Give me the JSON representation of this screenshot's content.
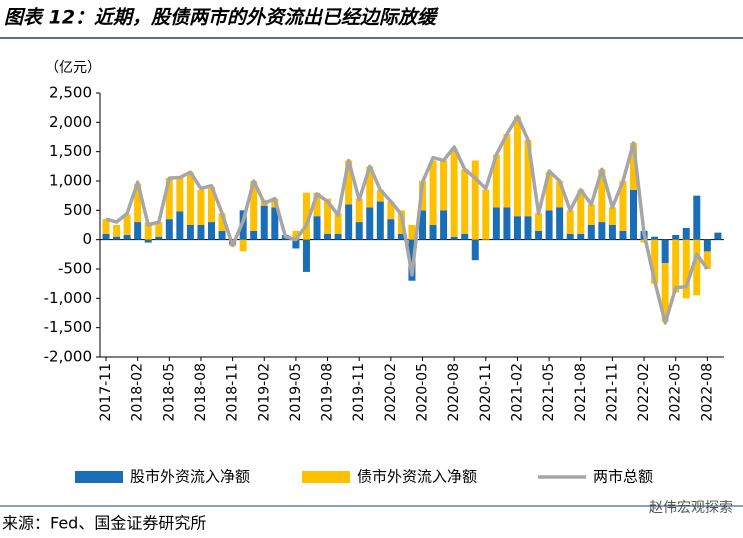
{
  "chart_data": {
    "type": "bar",
    "stacked": true,
    "title": "图表 12：近期，股债两市的外资流出已经边际放缓",
    "y_label": "（亿元）",
    "source": "来源：Fed、国金证券研究所",
    "watermark": "赵伟宏观探索",
    "categories": [
      "2017-11",
      null,
      null,
      "2018-02",
      null,
      null,
      "2018-05",
      null,
      null,
      "2018-08",
      null,
      null,
      "2018-11",
      null,
      null,
      "2019-02",
      null,
      null,
      "2019-05",
      null,
      null,
      "2019-08",
      null,
      null,
      "2019-11",
      null,
      null,
      "2020-02",
      null,
      null,
      "2020-05",
      null,
      null,
      "2020-08",
      null,
      null,
      "2020-11",
      null,
      null,
      "2021-02",
      null,
      null,
      "2021-05",
      null,
      null,
      "2021-08",
      null,
      null,
      "2021-11",
      null,
      null,
      "2022-02",
      null,
      null,
      "2022-05",
      null,
      null,
      "2022-08",
      null
    ],
    "series": [
      {
        "name": "股市外资流入净额",
        "type": "bar",
        "color": "#1a6eb8",
        "values": [
          100,
          50,
          80,
          300,
          -50,
          50,
          350,
          480,
          250,
          250,
          300,
          150,
          -80,
          500,
          150,
          580,
          550,
          80,
          -150,
          -550,
          400,
          100,
          100,
          600,
          300,
          550,
          650,
          350,
          100,
          -700,
          500,
          250,
          500,
          50,
          100,
          -350,
          0,
          550,
          550,
          400,
          400,
          150,
          500,
          550,
          100,
          100,
          250,
          300,
          250,
          150,
          850,
          150,
          50,
          -400,
          80,
          200,
          750,
          -200,
          120
        ]
      },
      {
        "name": "债市外资流入净额",
        "type": "bar",
        "color": "#ffc000",
        "values": [
          250,
          200,
          350,
          650,
          300,
          250,
          700,
          580,
          900,
          600,
          600,
          300,
          -30,
          -200,
          850,
          100,
          150,
          0,
          150,
          800,
          400,
          600,
          350,
          750,
          400,
          700,
          200,
          300,
          400,
          250,
          500,
          1100,
          850,
          1500,
          1100,
          1350,
          850,
          900,
          1250,
          1700,
          1300,
          300,
          650,
          450,
          400,
          750,
          350,
          900,
          300,
          850,
          800,
          -50,
          -750,
          -1000,
          -900,
          -1000,
          -950,
          -300,
          null
        ]
      },
      {
        "name": "两市总额",
        "type": "line",
        "color": "#a6a6a6",
        "values": [
          350,
          300,
          450,
          980,
          250,
          300,
          1050,
          1060,
          1150,
          870,
          920,
          450,
          -100,
          320,
          1000,
          620,
          700,
          50,
          0,
          250,
          780,
          650,
          420,
          1350,
          680,
          1250,
          850,
          650,
          430,
          -600,
          980,
          1400,
          1350,
          1580,
          1200,
          1050,
          870,
          1450,
          1800,
          2100,
          1700,
          450,
          1170,
          1000,
          500,
          850,
          600,
          1200,
          550,
          1000,
          1650,
          100,
          -700,
          -1420,
          -820,
          -800,
          -250,
          -500,
          null
        ]
      }
    ],
    "ylim": [
      -2000,
      2500
    ],
    "yticks": [
      {
        "value": -2000,
        "label": "-2,000"
      },
      {
        "value": -1500,
        "label": "-1,500"
      },
      {
        "value": -1000,
        "label": "-1,000"
      },
      -500,
      0,
      500,
      {
        "value": 1000,
        "label": "1,000"
      },
      {
        "value": 1500,
        "label": "1,500"
      },
      {
        "value": 2000,
        "label": "2,000"
      },
      {
        "value": 2500,
        "label": "2,500"
      }
    ],
    "grid": false,
    "legend": "bottom"
  }
}
